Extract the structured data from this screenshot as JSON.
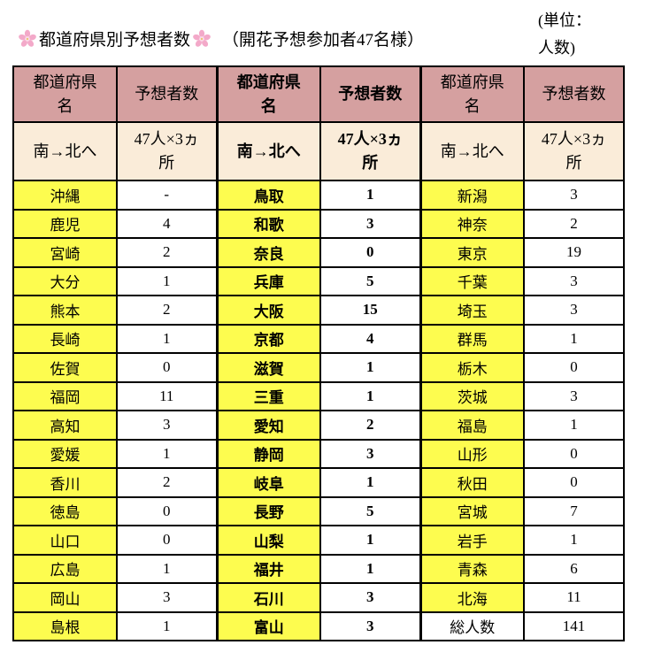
{
  "header": {
    "title": "都道府県別予想者数",
    "subtitle": "（開花予想参加者47名様）",
    "unit_line1": "(単位：",
    "unit_line2": "人数)"
  },
  "table": {
    "column_headers": [
      "都道府県名",
      "予想者数",
      "都道府県名",
      "予想者数",
      "都道府県名",
      "予想者数"
    ],
    "sub_headers": [
      "南→北へ",
      "47人×3ヵ所",
      "南→北へ",
      "47人×3ヵ所",
      "南→北へ",
      "47人×3ヵ所"
    ],
    "rows": [
      [
        "沖縄",
        "-",
        "鳥取",
        "1",
        "新潟",
        "3"
      ],
      [
        "鹿児",
        "4",
        "和歌",
        "3",
        "神奈",
        "2"
      ],
      [
        "宮崎",
        "2",
        "奈良",
        "0",
        "東京",
        "19"
      ],
      [
        "大分",
        "1",
        "兵庫",
        "5",
        "千葉",
        "3"
      ],
      [
        "熊本",
        "2",
        "大阪",
        "15",
        "埼玉",
        "3"
      ],
      [
        "長崎",
        "1",
        "京都",
        "4",
        "群馬",
        "1"
      ],
      [
        "佐賀",
        "0",
        "滋賀",
        "1",
        "栃木",
        "0"
      ],
      [
        "福岡",
        "11",
        "三重",
        "1",
        "茨城",
        "3"
      ],
      [
        "高知",
        "3",
        "愛知",
        "2",
        "福島",
        "1"
      ],
      [
        "愛媛",
        "1",
        "静岡",
        "3",
        "山形",
        "0"
      ],
      [
        "香川",
        "2",
        "岐阜",
        "1",
        "秋田",
        "0"
      ],
      [
        "徳島",
        "0",
        "長野",
        "5",
        "宮城",
        "7"
      ],
      [
        "山口",
        "0",
        "山梨",
        "1",
        "岩手",
        "1"
      ],
      [
        "広島",
        "1",
        "福井",
        "1",
        "青森",
        "6"
      ],
      [
        "岡山",
        "3",
        "石川",
        "3",
        "北海",
        "11"
      ],
      [
        "島根",
        "1",
        "富山",
        "3",
        "総人数",
        "141"
      ]
    ],
    "total_label": "総人数",
    "total_value": "141"
  },
  "colors": {
    "header_pink": "#d5a0a0",
    "subheader_cream": "#faecd9",
    "cell_yellow": "#fdfc4f",
    "border_black": "#000000",
    "sakura_pink": "#f3a9c9"
  }
}
